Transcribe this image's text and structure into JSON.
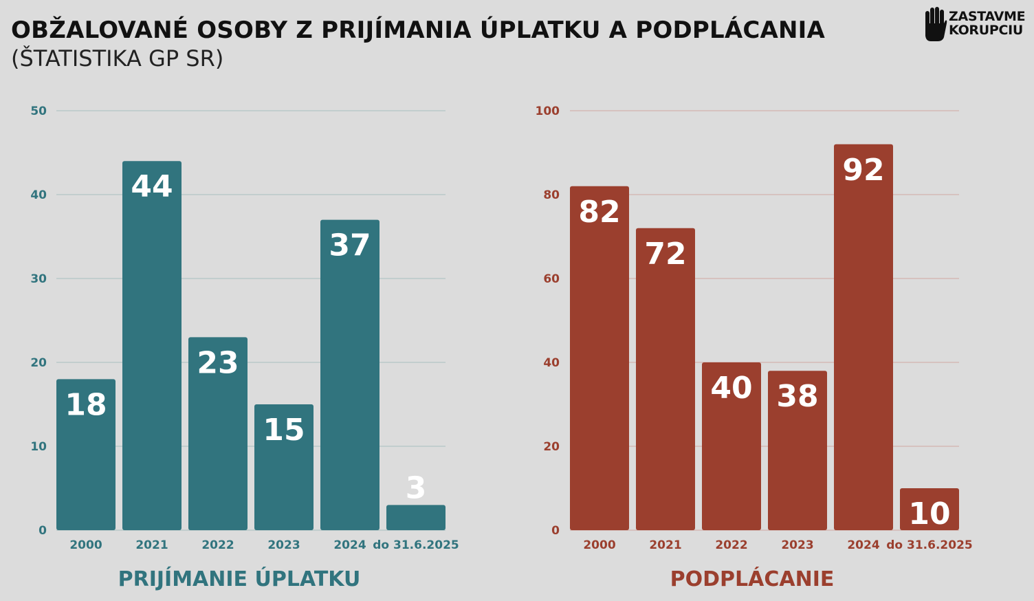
{
  "header": {
    "title": "OBŽALOVANÉ OSOBY Z PRIJÍMANIA ÚPLATKU A PODPLÁCANIA",
    "subtitle": "(ŠTATISTIKA GP SR)"
  },
  "logo": {
    "line1": "ZASTAVME",
    "line2": "KORUPCIU",
    "icon": "hand-stop-icon"
  },
  "chart_data": [
    {
      "type": "bar",
      "title": "PRIJÍMANIE ÚPLATKU",
      "categories": [
        "2000",
        "2021",
        "2022",
        "2023",
        "2024",
        "do 31.6.2025"
      ],
      "values": [
        18,
        44,
        23,
        15,
        37,
        3
      ],
      "ylim": [
        0,
        50
      ],
      "yticks": [
        0,
        10,
        20,
        30,
        40,
        50
      ],
      "grid": true,
      "color": "#31747e"
    },
    {
      "type": "bar",
      "title": "PODPLÁCANIE",
      "categories": [
        "2000",
        "2021",
        "2022",
        "2023",
        "2024",
        "do 31.6.2025"
      ],
      "values": [
        82,
        72,
        40,
        38,
        92,
        10
      ],
      "ylim": [
        0,
        100
      ],
      "yticks": [
        0,
        20,
        40,
        60,
        80,
        100
      ],
      "grid": true,
      "color": "#9b3f2e"
    }
  ]
}
